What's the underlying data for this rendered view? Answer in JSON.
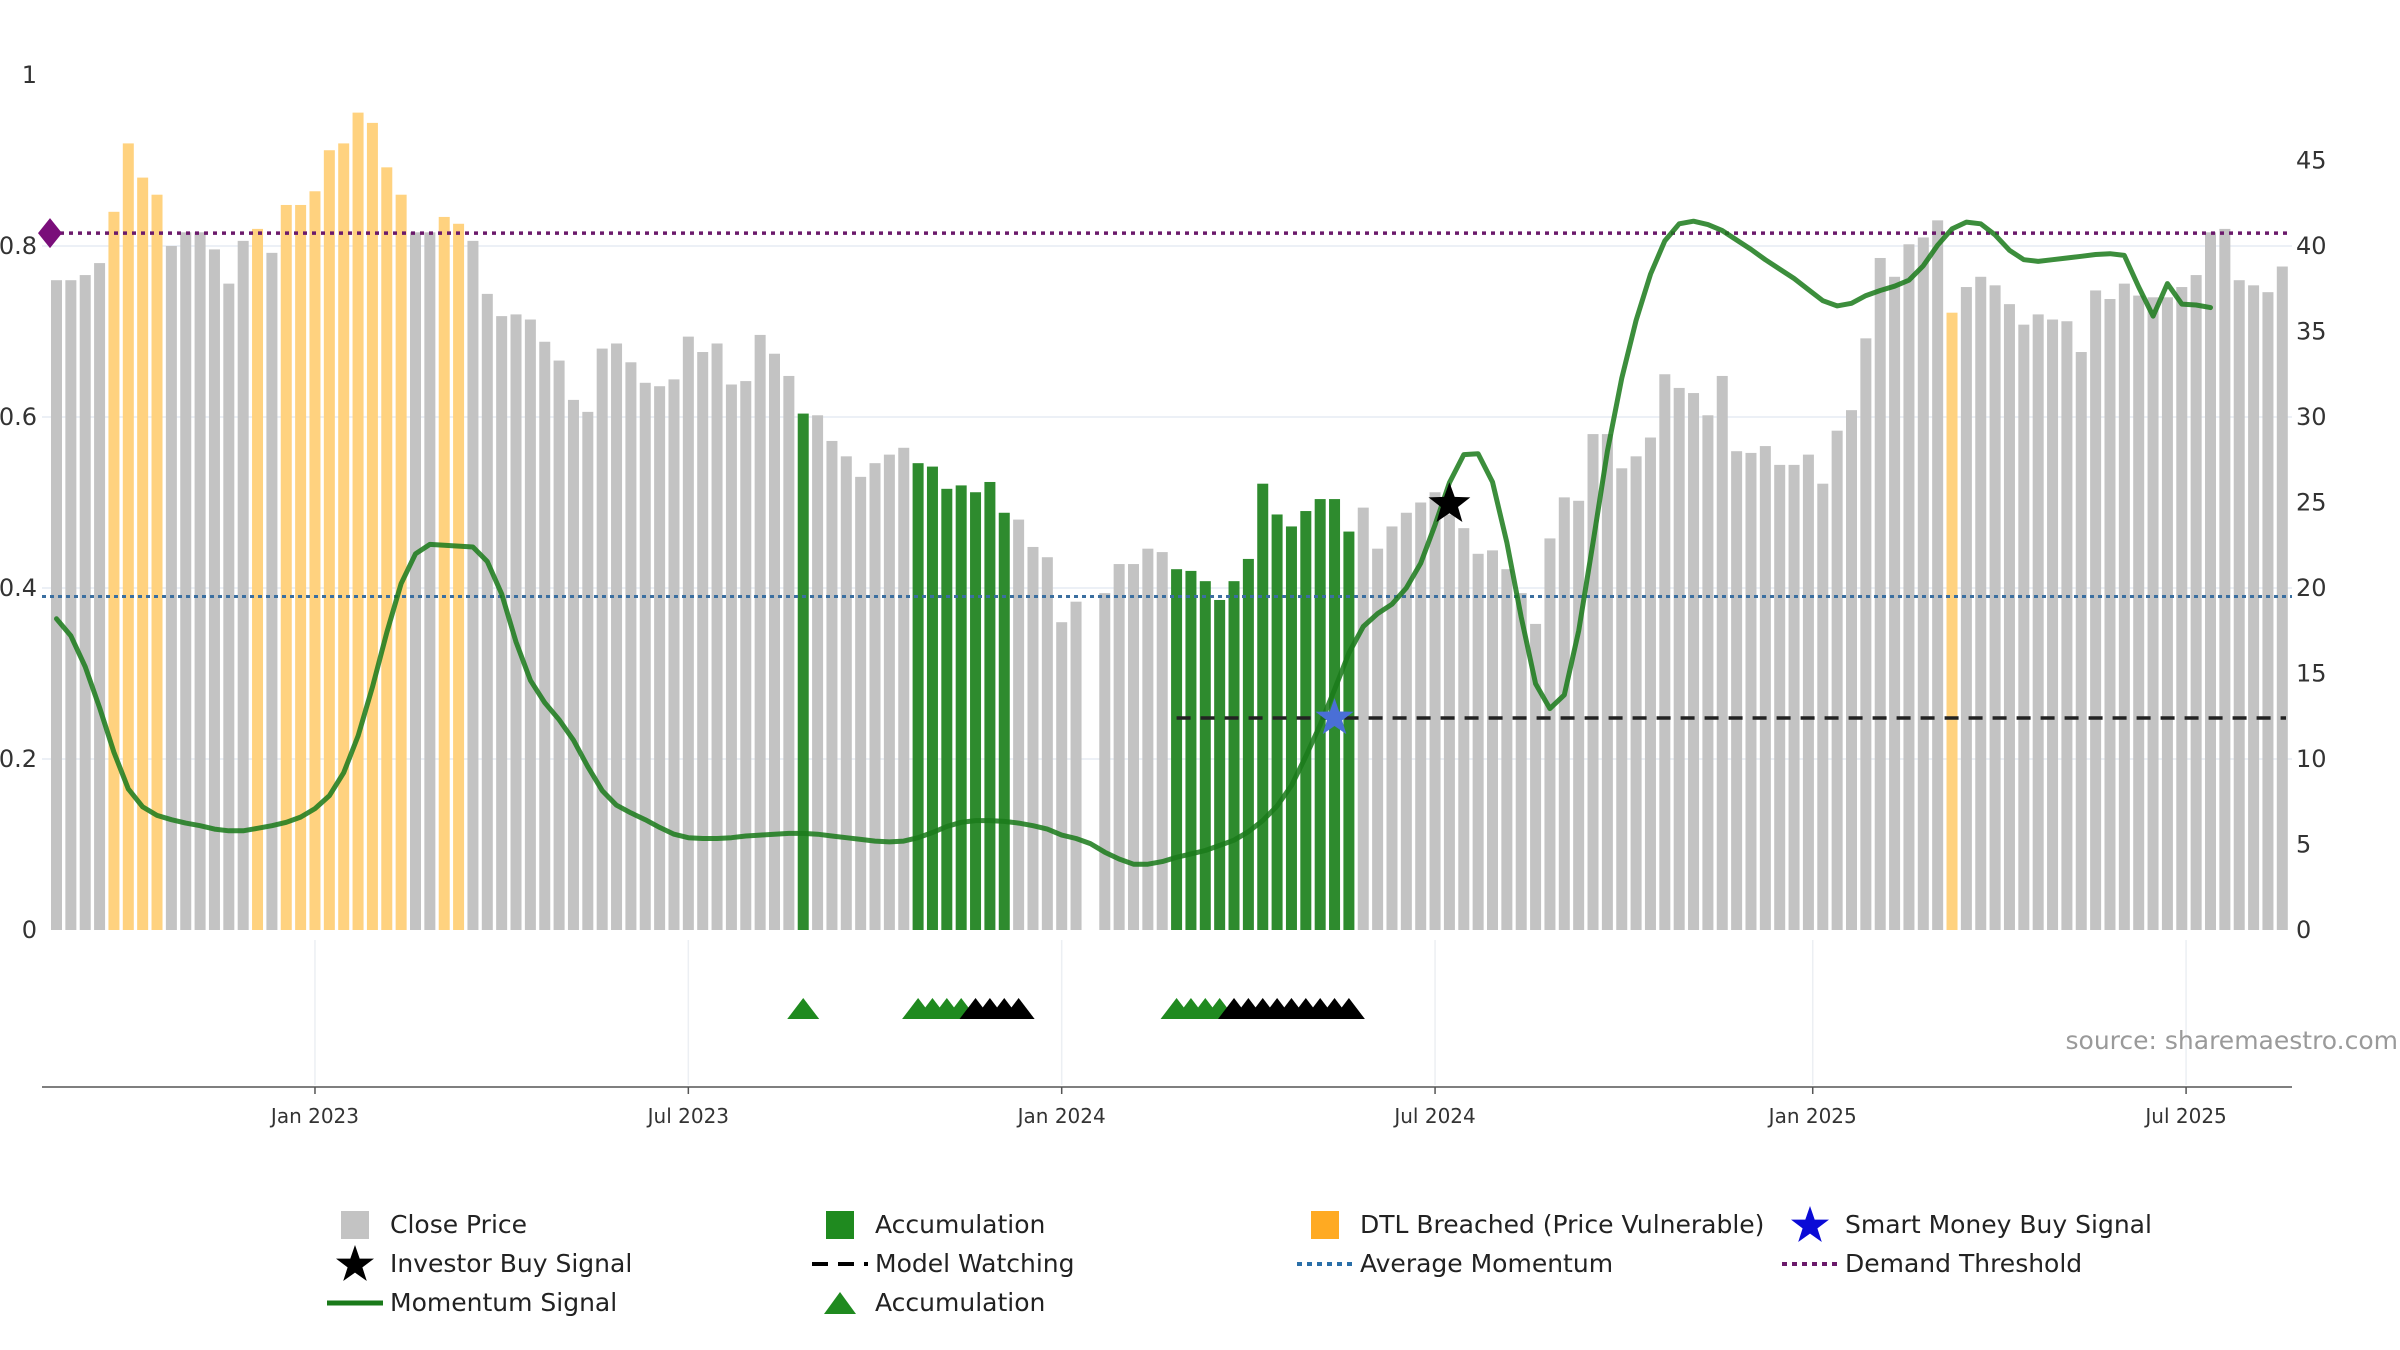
{
  "chart_data": {
    "type": "bar",
    "source": "source: sharemaestro.com",
    "left_axis": {
      "ticks": [
        "0",
        "0.2",
        "0.4",
        "0.6",
        "0.8",
        "1"
      ],
      "range": [
        0,
        1
      ]
    },
    "right_axis": {
      "ticks": [
        "0",
        "5",
        "10",
        "15",
        "20",
        "25",
        "30",
        "35",
        "40",
        "45"
      ],
      "range": [
        0,
        50
      ]
    },
    "x_axis": {
      "ticks": [
        {
          "label": "Jan 2023",
          "week": 18
        },
        {
          "label": "Jul 2023",
          "week": 44
        },
        {
          "label": "Jan 2024",
          "week": 70
        },
        {
          "label": "Jul 2024",
          "week": 96
        },
        {
          "label": "Jan 2025",
          "week": 122.3
        },
        {
          "label": "Jul 2025",
          "week": 148.3
        }
      ]
    },
    "grid": true,
    "colors": {
      "close": "#c3c3c3",
      "accumulation": "#2e8b2e",
      "dtl": "#ffd27f",
      "momentum": "#1a7a1a",
      "average": "#3b6fa0",
      "demand": "#6b1a6b",
      "watching": "#222222",
      "smart_money": "#4a6fd6"
    },
    "close_price": [
      38.0,
      38.0,
      38.3,
      39.0,
      42.0,
      46.0,
      44.0,
      43.0,
      40.0,
      40.8,
      40.8,
      39.8,
      37.8,
      40.3,
      41.0,
      39.6,
      42.4,
      42.4,
      43.2,
      45.6,
      46.0,
      47.8,
      47.2,
      44.6,
      43.0,
      40.8,
      40.8,
      41.7,
      41.3,
      40.3,
      37.2,
      35.9,
      36.0,
      35.7,
      34.4,
      33.3,
      31.0,
      30.3,
      34.0,
      34.3,
      33.2,
      32.0,
      31.8,
      32.2,
      34.7,
      33.8,
      34.3,
      31.9,
      32.1,
      34.8,
      33.7,
      32.4,
      30.2,
      30.1,
      28.6,
      27.7,
      26.5,
      27.3,
      27.8,
      28.2,
      27.3,
      27.1,
      25.8,
      26.0,
      25.6,
      26.2,
      24.4,
      24.0,
      22.4,
      21.8,
      18.0,
      19.2,
      0,
      19.7,
      21.4,
      21.4,
      22.3,
      22.1,
      21.1,
      21.0,
      20.4,
      19.3,
      20.4,
      21.7,
      26.1,
      24.3,
      23.6,
      24.5,
      25.2,
      25.2,
      23.3,
      24.7,
      22.3,
      23.6,
      24.4,
      25.0,
      25.6,
      24.3,
      23.5,
      22.0,
      22.2,
      21.1,
      19.7,
      17.9,
      22.9,
      25.3,
      25.1,
      29.0,
      29.0,
      27.0,
      27.7,
      28.8,
      32.5,
      31.7,
      31.4,
      30.1,
      32.4,
      28.0,
      27.9,
      28.3,
      27.2,
      27.2,
      27.8,
      26.1,
      29.2,
      30.4,
      34.6,
      39.3,
      38.2,
      40.1,
      40.5,
      41.5,
      36.1,
      37.6,
      38.2,
      37.7,
      36.6,
      35.4,
      36.0,
      35.7,
      35.6,
      33.8,
      37.4,
      36.9,
      37.8,
      37.1,
      37.0,
      37.0,
      37.6,
      38.3,
      40.8,
      41.0,
      38.0,
      37.7,
      37.3,
      38.8
    ],
    "accumulation_weeks": [
      52,
      60,
      61,
      62,
      63,
      64,
      65,
      66,
      78,
      79,
      80,
      81,
      82,
      83,
      84,
      85,
      86,
      87,
      88,
      89,
      90
    ],
    "dtl_weeks": [
      4,
      5,
      6,
      7,
      14,
      16,
      17,
      18,
      19,
      20,
      21,
      22,
      23,
      24,
      27,
      28,
      132
    ],
    "momentum": [
      0.364,
      0.344,
      0.308,
      0.26,
      0.208,
      0.165,
      0.144,
      0.134,
      0.129,
      0.125,
      0.122,
      0.118,
      0.116,
      0.116,
      0.119,
      0.122,
      0.126,
      0.132,
      0.142,
      0.157,
      0.184,
      0.227,
      0.284,
      0.348,
      0.405,
      0.44,
      0.451,
      0.45,
      0.449,
      0.448,
      0.431,
      0.393,
      0.337,
      0.292,
      0.266,
      0.246,
      0.222,
      0.191,
      0.163,
      0.146,
      0.137,
      0.129,
      0.12,
      0.112,
      0.108,
      0.107,
      0.107,
      0.108,
      0.11,
      0.111,
      0.112,
      0.113,
      0.113,
      0.112,
      0.11,
      0.108,
      0.106,
      0.104,
      0.103,
      0.104,
      0.108,
      0.114,
      0.121,
      0.126,
      0.128,
      0.128,
      0.127,
      0.125,
      0.122,
      0.118,
      0.111,
      0.107,
      0.101,
      0.091,
      0.083,
      0.077,
      0.077,
      0.08,
      0.085,
      0.089,
      0.093,
      0.099,
      0.105,
      0.115,
      0.128,
      0.145,
      0.169,
      0.203,
      0.24,
      0.281,
      0.324,
      0.355,
      0.37,
      0.381,
      0.4,
      0.429,
      0.474,
      0.523,
      0.556,
      0.557,
      0.524,
      0.453,
      0.366,
      0.288,
      0.259,
      0.275,
      0.35,
      0.453,
      0.56,
      0.645,
      0.713,
      0.767,
      0.806,
      0.826,
      0.829,
      0.825,
      0.818,
      0.807,
      0.796,
      0.784,
      0.773,
      0.762,
      0.749,
      0.736,
      0.73,
      0.733,
      0.742,
      0.748,
      0.753,
      0.76,
      0.777,
      0.801,
      0.82,
      0.828,
      0.826,
      0.813,
      0.795,
      0.784,
      0.782,
      0.784,
      0.786,
      0.788,
      0.79,
      0.791,
      0.789,
      0.752,
      0.718,
      0.756,
      0.732,
      0.731,
      0.728
    ],
    "average_momentum": 0.39,
    "demand_threshold": 0.815,
    "model_watching": {
      "start_week": 78,
      "value": 0.248
    },
    "investor_buy_signal": {
      "week": 97,
      "value": 0.498
    },
    "smart_money_buy_signal": {
      "week": 89,
      "value": 0.248
    },
    "triangle_markers": {
      "green": [
        52,
        60,
        61,
        62,
        63,
        78,
        79,
        80,
        81
      ],
      "black": [
        64,
        65,
        66,
        67,
        82,
        83,
        84,
        85,
        86,
        87,
        88,
        89,
        90
      ]
    },
    "legend": [
      {
        "label": "Close Price",
        "symbol": "gray-square"
      },
      {
        "label": "Accumulation",
        "symbol": "green-square"
      },
      {
        "label": "DTL Breached (Price Vulnerable)",
        "symbol": "orange-square"
      },
      {
        "label": "Smart Money Buy Signal",
        "symbol": "blue-star"
      },
      {
        "label": "Investor Buy Signal",
        "symbol": "black-star"
      },
      {
        "label": "Model Watching",
        "symbol": "black-dashed-line"
      },
      {
        "label": "Average Momentum",
        "symbol": "blue-dotted-line"
      },
      {
        "label": "Demand Threshold",
        "symbol": "purple-dotted-line"
      },
      {
        "label": "Momentum Signal",
        "symbol": "green-line"
      },
      {
        "label": "Accumulation",
        "symbol": "green-triangle"
      }
    ]
  }
}
